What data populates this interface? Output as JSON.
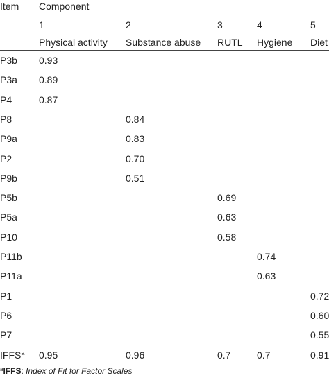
{
  "table": {
    "item_header": "Item",
    "component_header": "Component",
    "components": [
      {
        "number": "1",
        "name": "Physical activity"
      },
      {
        "number": "2",
        "name": "Substance abuse"
      },
      {
        "number": "3",
        "name": "RUTL"
      },
      {
        "number": "4",
        "name": "Hygiene"
      },
      {
        "number": "5",
        "name": "Diet"
      }
    ],
    "rows": [
      {
        "item": "P3b",
        "values": [
          "0.93",
          "",
          "",
          "",
          ""
        ]
      },
      {
        "item": "P3a",
        "values": [
          "0.89",
          "",
          "",
          "",
          ""
        ]
      },
      {
        "item": "P4",
        "values": [
          "0.87",
          "",
          "",
          "",
          ""
        ]
      },
      {
        "item": "P8",
        "values": [
          "",
          "0.84",
          "",
          "",
          ""
        ]
      },
      {
        "item": "P9a",
        "values": [
          "",
          "0.83",
          "",
          "",
          ""
        ]
      },
      {
        "item": "P2",
        "values": [
          "",
          "0.70",
          "",
          "",
          ""
        ]
      },
      {
        "item": "P9b",
        "values": [
          "",
          "0.51",
          "",
          "",
          ""
        ]
      },
      {
        "item": "P5b",
        "values": [
          "",
          "",
          "0.69",
          "",
          ""
        ]
      },
      {
        "item": "P5a",
        "values": [
          "",
          "",
          "0.63",
          "",
          ""
        ]
      },
      {
        "item": "P10",
        "values": [
          "",
          "",
          "0.58",
          "",
          ""
        ]
      },
      {
        "item": "P11b",
        "values": [
          "",
          "",
          "",
          "0.74",
          ""
        ]
      },
      {
        "item": "P11a",
        "values": [
          "",
          "",
          "",
          "0.63",
          ""
        ]
      },
      {
        "item": "P1",
        "values": [
          "",
          "",
          "",
          "",
          "0.72"
        ]
      },
      {
        "item": "P6",
        "values": [
          "",
          "",
          "",
          "",
          "0.60"
        ]
      },
      {
        "item": "P7",
        "values": [
          "",
          "",
          "",
          "",
          "0.55"
        ]
      }
    ],
    "ifs_row": {
      "item": "IFFS",
      "item_mark": "a",
      "values": [
        "0.95",
        "0.96",
        "0.7",
        "0.7",
        "0.91"
      ]
    }
  },
  "footnote": {
    "mark": "a",
    "abbr": "IFFS",
    "separator": ": ",
    "description": "Index of Fit for Factor Scales"
  }
}
